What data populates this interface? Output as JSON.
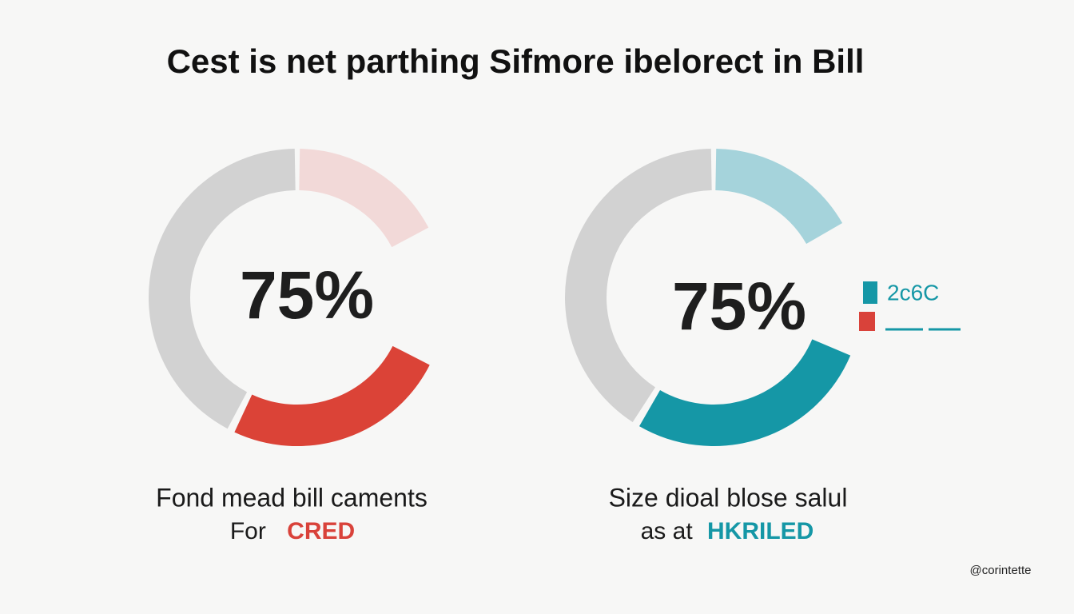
{
  "title": "Cest is net parthing Sifmore ibelorect in Bill",
  "panels": [
    {
      "center_label": "75%",
      "caption_line1": "Fond mead bill caments",
      "caption_prefix": "For",
      "caption_highlight": "CRED"
    },
    {
      "center_label": "75%",
      "caption_line1": "Size dioal blose salul",
      "caption_prefix": "as  at",
      "caption_highlight": "HKRILED"
    }
  ],
  "legend": {
    "label": "2c6C"
  },
  "watermark": "@corintette"
}
